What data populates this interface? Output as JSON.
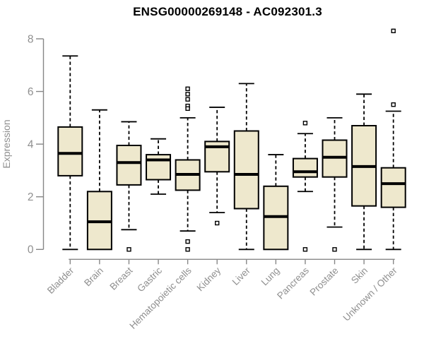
{
  "title": "ENSG00000269148 - AC092301.3",
  "chart_data": {
    "type": "boxplot",
    "title": "ENSG00000269148 - AC092301.3",
    "xlabel": "",
    "ylabel": "Expression",
    "ylim": [
      0,
      8
    ],
    "yticks": [
      0,
      2,
      4,
      6,
      8
    ],
    "grid": false,
    "legend": "none",
    "box_fill_color": "#EEE8CD",
    "box_border_color": "#000000",
    "axis_color": "#878787",
    "tick_label_color": "#8f8f8f",
    "categories": [
      "Bladder",
      "Brain",
      "Breast",
      "Gastric",
      "Hematopoietic cells",
      "Kidney",
      "Liver",
      "Lung",
      "Pancreas",
      "Prostate",
      "Skin",
      "Unknown / Other"
    ],
    "series": [
      {
        "name": "Bladder",
        "whisker_low": 0,
        "q1": 2.8,
        "median": 3.65,
        "q3": 4.65,
        "whisker_high": 7.35,
        "outliers": []
      },
      {
        "name": "Brain",
        "whisker_low": 0,
        "q1": 0,
        "median": 1.05,
        "q3": 2.2,
        "whisker_high": 5.3,
        "outliers": []
      },
      {
        "name": "Breast",
        "whisker_low": 0.75,
        "q1": 2.45,
        "median": 3.3,
        "q3": 3.95,
        "whisker_high": 4.85,
        "outliers": [
          0
        ]
      },
      {
        "name": "Gastric",
        "whisker_low": 2.1,
        "q1": 2.65,
        "median": 3.4,
        "q3": 3.6,
        "whisker_high": 4.2,
        "outliers": []
      },
      {
        "name": "Hematopoietic cells",
        "whisker_low": 0.7,
        "q1": 2.25,
        "median": 2.85,
        "q3": 3.4,
        "whisker_high": 5.0,
        "outliers": [
          6.1,
          5.9,
          5.7,
          5.45,
          5.35,
          0.3,
          0
        ]
      },
      {
        "name": "Kidney",
        "whisker_low": 1.4,
        "q1": 2.95,
        "median": 3.9,
        "q3": 4.1,
        "whisker_high": 5.4,
        "outliers": [
          1.0
        ]
      },
      {
        "name": "Liver",
        "whisker_low": 0,
        "q1": 1.55,
        "median": 2.85,
        "q3": 4.5,
        "whisker_high": 6.3,
        "outliers": []
      },
      {
        "name": "Lung",
        "whisker_low": 0,
        "q1": 0,
        "median": 1.25,
        "q3": 2.4,
        "whisker_high": 3.6,
        "outliers": []
      },
      {
        "name": "Pancreas",
        "whisker_low": 2.2,
        "q1": 2.75,
        "median": 2.95,
        "q3": 3.45,
        "whisker_high": 4.4,
        "outliers": [
          4.8,
          0
        ]
      },
      {
        "name": "Prostate",
        "whisker_low": 0.85,
        "q1": 2.75,
        "median": 3.5,
        "q3": 4.15,
        "whisker_high": 5.0,
        "outliers": [
          0
        ]
      },
      {
        "name": "Skin",
        "whisker_low": 0,
        "q1": 1.65,
        "median": 3.15,
        "q3": 4.7,
        "whisker_high": 5.9,
        "outliers": []
      },
      {
        "name": "Unknown / Other",
        "whisker_low": 0,
        "q1": 1.6,
        "median": 2.5,
        "q3": 3.1,
        "whisker_high": 5.25,
        "outliers": [
          8.3,
          5.5
        ]
      }
    ]
  }
}
